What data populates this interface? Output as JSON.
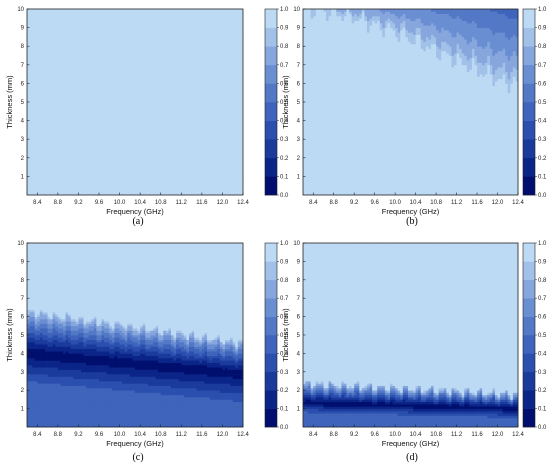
{
  "chart_data": [
    {
      "type": "heatmap",
      "panel_label": "(a)",
      "xlabel": "Frequency (GHz)",
      "ylabel": "Thickness (mm)",
      "xlim": [
        8.2,
        12.4
      ],
      "ylim": [
        0,
        10
      ],
      "xticks": [
        "8.4",
        "8.8",
        "9.2",
        "9.6",
        "10.0",
        "10.4",
        "10.8",
        "11.2",
        "11.6",
        "12.0",
        "12.4"
      ],
      "yticks": [
        "1",
        "2",
        "3",
        "4",
        "5",
        "6",
        "7",
        "8",
        "9",
        "10"
      ],
      "colorbar_ticks": [
        "0.0",
        "0.1",
        "0.2",
        "0.3",
        "0.4",
        "0.5",
        "0.6",
        "0.7",
        "0.8",
        "0.9",
        "1.0"
      ],
      "field": {
        "kind": "uniform",
        "value": 0.97
      }
    },
    {
      "type": "heatmap",
      "panel_label": "(b)",
      "xlabel": "Frequency (GHz)",
      "ylabel": "Thickness (mm)",
      "xlim": [
        8.2,
        12.4
      ],
      "ylim": [
        0,
        10
      ],
      "xticks": [
        "8.4",
        "8.8",
        "9.2",
        "9.6",
        "10.0",
        "10.4",
        "10.8",
        "11.2",
        "11.6",
        "12.0",
        "12.4"
      ],
      "yticks": [
        "1",
        "2",
        "3",
        "4",
        "5",
        "6",
        "7",
        "8",
        "9",
        "10"
      ],
      "colorbar_ticks": [
        "0.0",
        "0.1",
        "0.2",
        "0.3",
        "0.4",
        "0.5",
        "0.6",
        "0.7",
        "0.8",
        "0.9",
        "1.0"
      ],
      "field": {
        "kind": "top-region",
        "background": 0.97,
        "boundary_x": [
          8.2,
          9.0,
          10.0,
          11.0,
          12.0,
          12.4
        ],
        "boundary_y": [
          10.0,
          9.7,
          8.8,
          7.5,
          6.2,
          6.0
        ],
        "top_min_x": [
          8.2,
          10.0,
          12.4
        ],
        "top_min_y": [
          0.85,
          0.65,
          0.45
        ]
      }
    },
    {
      "type": "heatmap",
      "panel_label": "(c)",
      "xlabel": "Frequency (GHz)",
      "ylabel": "Thickness (mm)",
      "xlim": [
        8.2,
        12.4
      ],
      "ylim": [
        0,
        10
      ],
      "xticks": [
        "8.4",
        "8.8",
        "9.2",
        "9.6",
        "10.0",
        "10.4",
        "10.8",
        "11.2",
        "11.6",
        "12.0",
        "12.4"
      ],
      "yticks": [
        "1",
        "2",
        "3",
        "4",
        "5",
        "6",
        "7",
        "8",
        "9",
        "10"
      ],
      "colorbar_ticks": [
        "0.0",
        "0.1",
        "0.2",
        "0.3",
        "0.4",
        "0.5",
        "0.6",
        "0.7",
        "0.8",
        "0.9",
        "1.0"
      ],
      "field": {
        "kind": "band",
        "background": 0.97,
        "upper_edge": [
          6.3,
          4.6
        ],
        "band_center": [
          4.0,
          2.9
        ],
        "band_halfwidth": 1.6,
        "band_min": 0.02,
        "floor_value": 0.42
      }
    },
    {
      "type": "heatmap",
      "panel_label": "(d)",
      "xlabel": "Frequency (GHz)",
      "ylabel": "Thickness (mm)",
      "xlim": [
        8.2,
        12.4
      ],
      "ylim": [
        0,
        10
      ],
      "xticks": [
        "8.4",
        "8.8",
        "9.2",
        "9.6",
        "10.0",
        "10.4",
        "10.8",
        "11.2",
        "11.6",
        "12.0",
        "12.4"
      ],
      "yticks": [
        "1",
        "2",
        "3",
        "4",
        "5",
        "6",
        "7",
        "8",
        "9",
        "10"
      ],
      "colorbar_ticks": [
        "0.0",
        "0.1",
        "0.2",
        "0.3",
        "0.4",
        "0.5",
        "0.6",
        "0.7",
        "0.8",
        "0.9",
        "1.0"
      ],
      "field": {
        "kind": "band",
        "background": 0.97,
        "upper_edge": [
          2.4,
          1.8
        ],
        "band_center": [
          1.3,
          1.0
        ],
        "band_halfwidth": 0.55,
        "band_min": 0.02,
        "floor_value": 0.45
      }
    }
  ],
  "colors": {
    "colormap": [
      "#000f6e",
      "#0a2488",
      "#1a3a9c",
      "#2a4fae",
      "#3e64bb",
      "#5278c6",
      "#6a8ed2",
      "#86a6dd",
      "#a2c1e8",
      "#bcdaf3",
      "#cceaf9"
    ]
  }
}
